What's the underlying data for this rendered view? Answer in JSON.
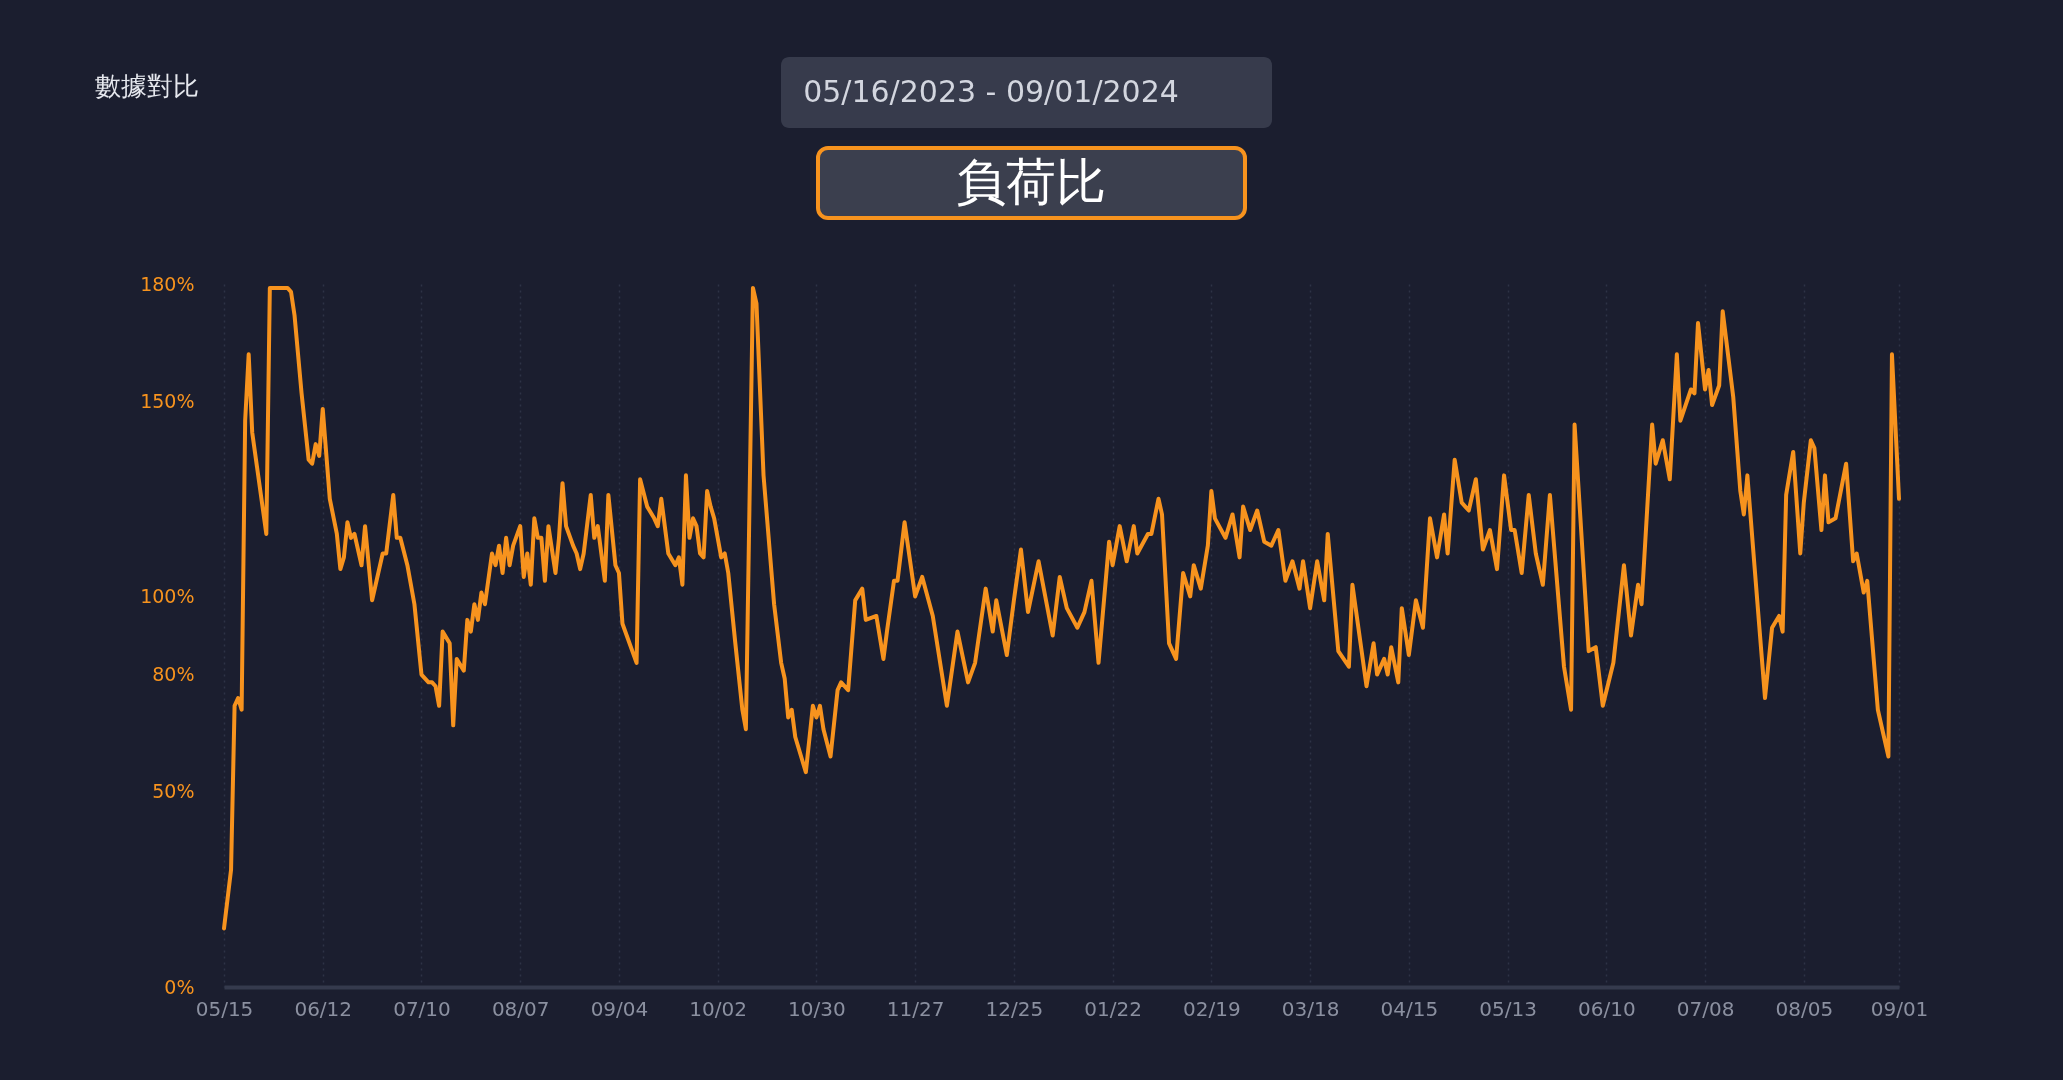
{
  "chart_data": {
    "type": "line",
    "title": "負荷比",
    "subtitle": "05/16/2023  -  09/01/2024",
    "annotations": [
      "數據對比"
    ],
    "x": [
      "2023-05-15",
      "2023-05-17",
      "2023-05-18",
      "2023-05-19",
      "2023-05-20",
      "2023-05-21",
      "2023-05-22",
      "2023-05-23",
      "2023-05-27",
      "2023-05-28",
      "2023-06-02",
      "2023-06-03",
      "2023-06-04",
      "2023-06-06",
      "2023-06-08",
      "2023-06-09",
      "2023-06-10",
      "2023-06-11",
      "2023-06-12",
      "2023-06-14",
      "2023-06-16",
      "2023-06-17",
      "2023-06-18",
      "2023-06-19",
      "2023-06-20",
      "2023-06-21",
      "2023-06-23",
      "2023-06-24",
      "2023-06-26",
      "2023-06-27",
      "2023-06-29",
      "2023-06-30",
      "2023-07-02",
      "2023-07-03",
      "2023-07-04",
      "2023-07-06",
      "2023-07-08",
      "2023-07-10",
      "2023-07-12",
      "2023-07-13",
      "2023-07-14",
      "2023-07-15",
      "2023-07-16",
      "2023-07-18",
      "2023-07-19",
      "2023-07-20",
      "2023-07-22",
      "2023-07-23",
      "2023-07-24",
      "2023-07-25",
      "2023-07-26",
      "2023-07-27",
      "2023-07-28",
      "2023-07-30",
      "2023-07-31",
      "2023-08-01",
      "2023-08-02",
      "2023-08-03",
      "2023-08-04",
      "2023-08-05",
      "2023-08-07",
      "2023-08-08",
      "2023-08-09",
      "2023-08-10",
      "2023-08-11",
      "2023-08-12",
      "2023-08-13",
      "2023-08-14",
      "2023-08-15",
      "2023-08-17",
      "2023-08-18",
      "2023-08-19",
      "2023-08-20",
      "2023-08-22",
      "2023-08-23",
      "2023-08-24",
      "2023-08-25",
      "2023-08-27",
      "2023-08-28",
      "2023-08-29",
      "2023-08-31",
      "2023-09-01",
      "2023-09-03",
      "2023-09-04",
      "2023-09-05",
      "2023-09-09",
      "2023-09-10",
      "2023-09-12",
      "2023-09-14",
      "2023-09-15",
      "2023-09-16",
      "2023-09-18",
      "2023-09-20",
      "2023-09-21",
      "2023-09-22",
      "2023-09-23",
      "2023-09-24",
      "2023-09-25",
      "2023-09-26",
      "2023-09-27",
      "2023-09-28",
      "2023-09-29",
      "2023-09-30",
      "2023-10-01",
      "2023-10-02",
      "2023-10-03",
      "2023-10-04",
      "2023-10-05",
      "2023-10-07",
      "2023-10-09",
      "2023-10-10",
      "2023-10-12",
      "2023-10-13",
      "2023-10-15",
      "2023-10-18",
      "2023-10-20",
      "2023-10-21",
      "2023-10-22",
      "2023-10-23",
      "2023-10-24",
      "2023-10-26",
      "2023-10-27",
      "2023-10-29",
      "2023-10-30",
      "2023-10-31",
      "2023-11-01",
      "2023-11-03",
      "2023-11-05",
      "2023-11-06",
      "2023-11-08",
      "2023-11-10",
      "2023-11-12",
      "2023-11-13",
      "2023-11-16",
      "2023-11-18",
      "2023-11-19",
      "2023-11-21",
      "2023-11-22",
      "2023-11-24",
      "2023-11-27",
      "2023-11-29",
      "2023-12-02",
      "2023-12-06",
      "2023-12-09",
      "2023-12-12",
      "2023-12-14",
      "2023-12-17",
      "2023-12-19",
      "2023-12-20",
      "2023-12-23",
      "2023-12-25",
      "2023-12-27",
      "2023-12-29",
      "2024-01-01",
      "2024-01-05",
      "2024-01-07",
      "2024-01-09",
      "2024-01-12",
      "2024-01-14",
      "2024-01-16",
      "2024-01-18",
      "2024-01-21",
      "2024-01-22",
      "2024-01-24",
      "2024-01-26",
      "2024-01-28",
      "2024-01-29",
      "2024-02-01",
      "2024-02-02",
      "2024-02-04",
      "2024-02-05",
      "2024-02-07",
      "2024-02-09",
      "2024-02-11",
      "2024-02-13",
      "2024-02-14",
      "2024-02-16",
      "2024-02-18",
      "2024-02-19",
      "2024-02-20",
      "2024-02-23",
      "2024-02-25",
      "2024-02-27",
      "2024-02-28",
      "2024-03-01",
      "2024-03-03",
      "2024-03-05",
      "2024-03-07",
      "2024-03-09",
      "2024-03-11",
      "2024-03-13",
      "2024-03-15",
      "2024-03-16",
      "2024-03-18",
      "2024-03-20",
      "2024-03-22",
      "2024-03-23",
      "2024-03-26",
      "2024-03-29",
      "2024-03-30",
      "2024-04-03",
      "2024-04-05",
      "2024-04-06",
      "2024-04-08",
      "2024-04-09",
      "2024-04-10",
      "2024-04-12",
      "2024-04-13",
      "2024-04-15",
      "2024-04-17",
      "2024-04-19",
      "2024-04-21",
      "2024-04-23",
      "2024-04-25",
      "2024-04-26",
      "2024-04-28",
      "2024-04-30",
      "2024-05-02",
      "2024-05-04",
      "2024-05-06",
      "2024-05-08",
      "2024-05-10",
      "2024-05-12",
      "2024-05-14",
      "2024-05-15",
      "2024-05-17",
      "2024-05-19",
      "2024-05-21",
      "2024-05-23",
      "2024-05-25",
      "2024-05-29",
      "2024-05-31",
      "2024-06-01",
      "2024-06-05",
      "2024-06-07",
      "2024-06-09",
      "2024-06-12",
      "2024-06-15",
      "2024-06-17",
      "2024-06-19",
      "2024-06-20",
      "2024-06-23",
      "2024-06-24",
      "2024-06-26",
      "2024-06-28",
      "2024-06-30",
      "2024-07-01",
      "2024-07-04",
      "2024-07-05",
      "2024-07-06",
      "2024-07-08",
      "2024-07-09",
      "2024-07-10",
      "2024-07-12",
      "2024-07-13",
      "2024-07-16",
      "2024-07-18",
      "2024-07-19",
      "2024-07-20",
      "2024-07-22",
      "2024-07-25",
      "2024-07-27",
      "2024-07-29",
      "2024-07-30",
      "2024-07-31",
      "2024-08-02",
      "2024-08-04",
      "2024-08-05",
      "2024-08-07",
      "2024-08-08",
      "2024-08-10",
      "2024-08-11",
      "2024-08-12",
      "2024-08-14",
      "2024-08-17",
      "2024-08-19",
      "2024-08-20",
      "2024-08-22",
      "2024-08-23",
      "2024-08-26",
      "2024-08-29",
      "2024-08-30",
      "2024-09-01"
    ],
    "series": [
      {
        "color": "#f7931e",
        "values": [
          15,
          30,
          72,
          74,
          71,
          145,
          162,
          142,
          116,
          179,
          179,
          178,
          172,
          152,
          135,
          134,
          139,
          136,
          148,
          125,
          116,
          107,
          110,
          119,
          115,
          116,
          108,
          118,
          99,
          103,
          111,
          111,
          126,
          115,
          115,
          108,
          98,
          80,
          78,
          78,
          77,
          72,
          91,
          88,
          67,
          84,
          81,
          94,
          91,
          98,
          94,
          101,
          98,
          111,
          108,
          113,
          106,
          115,
          108,
          113,
          118,
          105,
          111,
          103,
          120,
          115,
          115,
          104,
          118,
          106,
          115,
          129,
          118,
          113,
          111,
          107,
          111,
          126,
          115,
          118,
          104,
          126,
          108,
          106,
          93,
          83,
          130,
          123,
          120,
          118,
          125,
          111,
          108,
          110,
          103,
          131,
          115,
          120,
          118,
          111,
          110,
          127,
          123,
          120,
          115,
          110,
          111,
          106,
          88,
          71,
          66,
          179,
          175,
          131,
          98,
          83,
          79,
          69,
          71,
          64,
          58,
          55,
          72,
          69,
          72,
          66,
          59,
          76,
          78,
          76,
          99,
          102,
          94,
          95,
          84,
          91,
          104,
          104,
          119,
          100,
          105,
          95,
          72,
          91,
          78,
          83,
          102,
          91,
          99,
          85,
          99,
          112,
          96,
          109,
          90,
          105,
          97,
          92,
          96,
          104,
          83,
          114,
          108,
          118,
          109,
          118,
          111,
          116,
          116,
          125,
          121,
          88,
          84,
          106,
          100,
          108,
          102,
          113,
          127,
          120,
          115,
          121,
          110,
          123,
          117,
          122,
          114,
          113,
          117,
          104,
          109,
          102,
          109,
          97,
          109,
          99,
          116,
          86,
          82,
          103,
          77,
          88,
          80,
          84,
          80,
          87,
          78,
          97,
          85,
          99,
          92,
          120,
          110,
          121,
          111,
          135,
          124,
          122,
          130,
          112,
          117,
          107,
          131,
          117,
          117,
          106,
          126,
          111,
          103,
          126,
          82,
          71,
          144,
          86,
          87,
          72,
          83,
          108,
          90,
          103,
          98,
          144,
          134,
          140,
          130,
          162,
          145,
          153,
          152,
          170,
          153,
          158,
          149,
          154,
          173,
          151,
          127,
          121,
          131,
          108,
          74,
          92,
          95,
          91,
          126,
          137,
          111,
          124,
          140,
          138,
          117,
          131,
          119,
          120,
          134,
          109,
          111,
          101,
          104,
          71,
          59,
          162,
          125
        ]
      }
    ],
    "xlim": [
      "2023-05-15",
      "2024-09-01"
    ],
    "xticks": [
      {
        "value": "2023-05-15",
        "label": "05/15"
      },
      {
        "value": "2023-06-12",
        "label": "06/12"
      },
      {
        "value": "2023-07-10",
        "label": "07/10"
      },
      {
        "value": "2023-08-07",
        "label": "08/07"
      },
      {
        "value": "2023-09-04",
        "label": "09/04"
      },
      {
        "value": "2023-10-02",
        "label": "10/02"
      },
      {
        "value": "2023-10-30",
        "label": "10/30"
      },
      {
        "value": "2023-11-27",
        "label": "11/27"
      },
      {
        "value": "2023-12-25",
        "label": "12/25"
      },
      {
        "value": "2024-01-22",
        "label": "01/22"
      },
      {
        "value": "2024-02-19",
        "label": "02/19"
      },
      {
        "value": "2024-03-18",
        "label": "03/18"
      },
      {
        "value": "2024-04-15",
        "label": "04/15"
      },
      {
        "value": "2024-05-13",
        "label": "05/13"
      },
      {
        "value": "2024-06-10",
        "label": "06/10"
      },
      {
        "value": "2024-07-08",
        "label": "07/08"
      },
      {
        "value": "2024-08-05",
        "label": "08/05"
      },
      {
        "value": "2024-09-01",
        "label": "09/01"
      }
    ],
    "ylim": [
      0,
      180
    ],
    "yticks": [
      {
        "value": 0,
        "label": "0%"
      },
      {
        "value": 50,
        "label": "50%"
      },
      {
        "value": 80,
        "label": "80%"
      },
      {
        "value": 100,
        "label": "100%"
      },
      {
        "value": 150,
        "label": "150%"
      },
      {
        "value": 180,
        "label": "180%"
      }
    ],
    "grid": "x",
    "marker": "none",
    "line_style": "solid"
  }
}
